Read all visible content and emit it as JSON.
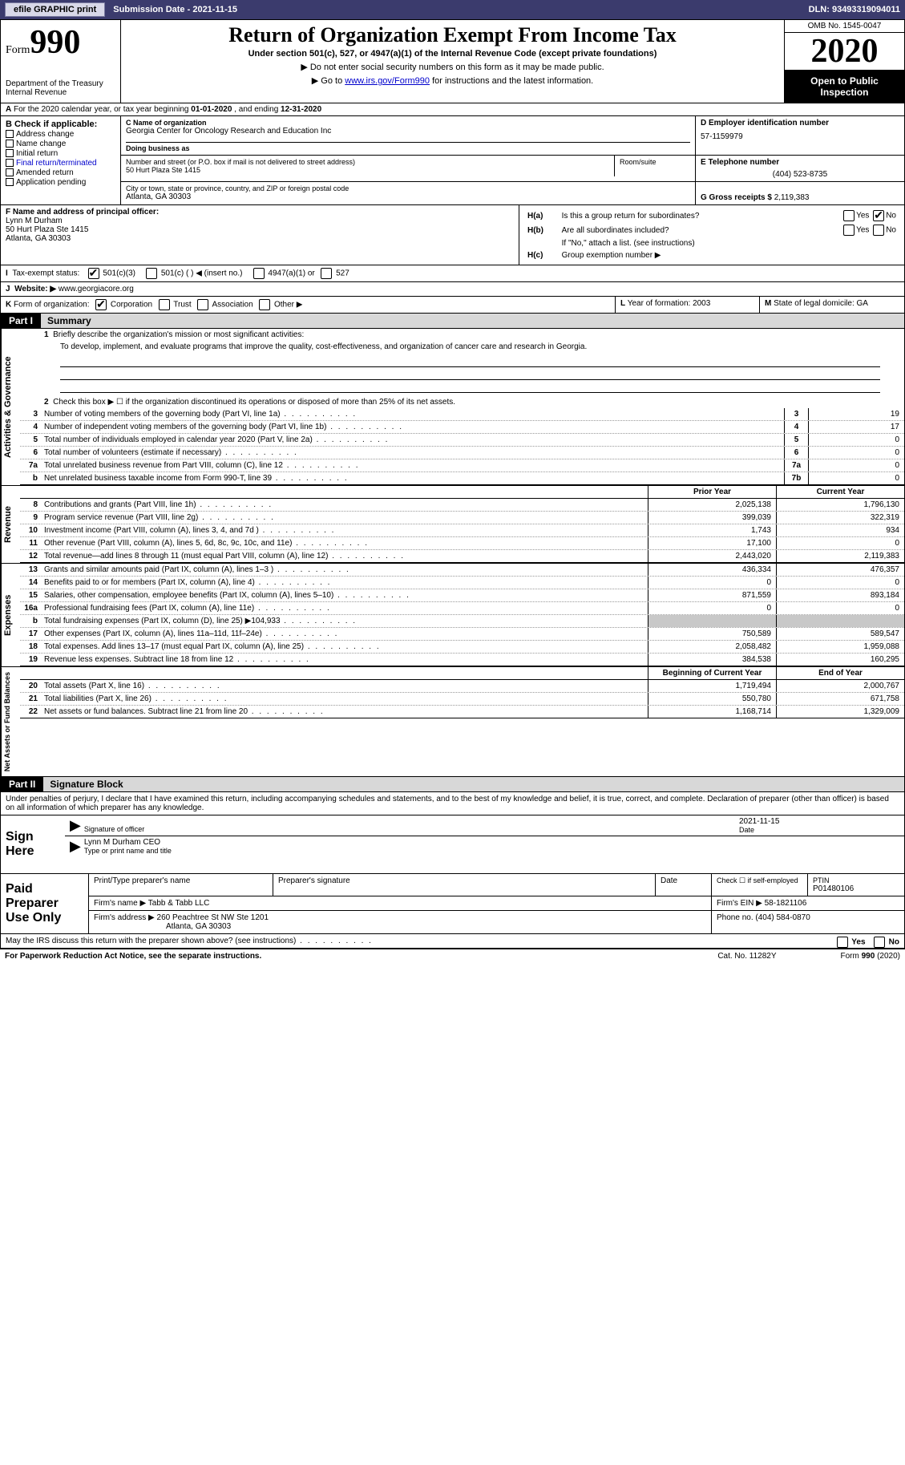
{
  "toolbar": {
    "efile_btn": "efile GRAPHIC print",
    "sub_date_label": "Submission Date - ",
    "sub_date": "2021-11-15",
    "dln_label": "DLN: ",
    "dln": "93493319094011"
  },
  "header": {
    "form_word": "Form",
    "form_num": "990",
    "dept": "Department of the Treasury\nInternal Revenue",
    "title": "Return of Organization Exempt From Income Tax",
    "sub1": "Under section 501(c), 527, or 4947(a)(1) of the Internal Revenue Code (except private foundations)",
    "sub2": "Do not enter social security numbers on this form as it may be made public.",
    "sub3_pre": "Go to ",
    "sub3_link": "www.irs.gov/Form990",
    "sub3_post": " for instructions and the latest information.",
    "omb": "OMB No. 1545-0047",
    "year": "2020",
    "inspect": "Open to Public Inspection"
  },
  "row_a": {
    "label_a": "A",
    "text": "For the 2020 calendar year, or tax year beginning ",
    "begin": "01-01-2020",
    "mid": " , and ending ",
    "end": "12-31-2020"
  },
  "col_b": {
    "lbl": "B Check if applicable:",
    "opts": [
      "Address change",
      "Name change",
      "Initial return",
      "Final return/terminated",
      "Amended return",
      "Application pending"
    ]
  },
  "col_c": {
    "name_lbl": "C Name of organization",
    "name": "Georgia Center for Oncology Research and Education Inc",
    "dba_lbl": "Doing business as",
    "dba": "",
    "street_lbl": "Number and street (or P.O. box if mail is not delivered to street address)",
    "street": "50 Hurt Plaza Ste 1415",
    "room_lbl": "Room/suite",
    "city_lbl": "City or town, state or province, country, and ZIP or foreign postal code",
    "city": "Atlanta, GA  30303"
  },
  "col_d": {
    "ein_lbl": "D Employer identification number",
    "ein": "57-1159979",
    "tel_lbl": "E Telephone number",
    "tel": "(404) 523-8735",
    "gross_lbl": "G Gross receipts $ ",
    "gross": "2,119,383"
  },
  "col_f": {
    "lbl": "F  Name and address of principal officer:",
    "name": "Lynn M Durham",
    "addr1": "50 Hurt Plaza Ste 1415",
    "addr2": "Atlanta, GA  30303"
  },
  "col_h": {
    "ha_lbl": "H(a)",
    "ha_q": "Is this a group return for subordinates?",
    "ha_yes": "Yes",
    "ha_no": "No",
    "hb_lbl": "H(b)",
    "hb_q": "Are all subordinates included?",
    "hb_note": "If \"No,\" attach a list. (see instructions)",
    "hc_lbl": "H(c)",
    "hc_q": "Group exemption number ▶"
  },
  "row_i": {
    "lbl": "I",
    "text": "Tax-exempt status:",
    "opt1": "501(c)(3)",
    "opt2": "501(c) (  ) ◀ (insert no.)",
    "opt3": "4947(a)(1) or",
    "opt4": "527"
  },
  "row_j": {
    "lbl": "J",
    "text": "Website: ▶ ",
    "url": "www.georgiacore.org"
  },
  "row_k": {
    "lbl": "K",
    "text": "Form of organization:",
    "opt1": "Corporation",
    "opt2": "Trust",
    "opt3": "Association",
    "opt4": "Other ▶"
  },
  "row_lm": {
    "l_lbl": "L",
    "l_text": "Year of formation: ",
    "l_val": "2003",
    "m_lbl": "M",
    "m_text": "State of legal domicile: ",
    "m_val": "GA"
  },
  "part1": {
    "hdr": "Part I",
    "title": "Summary",
    "q1_num": "1",
    "q1": "Briefly describe the organization's mission or most significant activities:",
    "mission": "To develop, implement, and evaluate programs that improve the quality, cost-effectiveness, and organization of cancer care and research in Georgia.",
    "q2_num": "2",
    "q2": "Check this box ▶ ☐  if the organization discontinued its operations or disposed of more than 25% of its net assets.",
    "vtab_gov": "Activities & Governance",
    "vtab_rev": "Revenue",
    "vtab_exp": "Expenses",
    "vtab_net": "Net Assets or Fund Balances",
    "lines_gov": [
      {
        "n": "3",
        "label": "Number of voting members of the governing body (Part VI, line 1a)",
        "box": "3",
        "val": "19"
      },
      {
        "n": "4",
        "label": "Number of independent voting members of the governing body (Part VI, line 1b)",
        "box": "4",
        "val": "17"
      },
      {
        "n": "5",
        "label": "Total number of individuals employed in calendar year 2020 (Part V, line 2a)",
        "box": "5",
        "val": "0"
      },
      {
        "n": "6",
        "label": "Total number of volunteers (estimate if necessary)",
        "box": "6",
        "val": "0"
      },
      {
        "n": "7a",
        "label": "Total unrelated business revenue from Part VIII, column (C), line 12",
        "box": "7a",
        "val": "0"
      },
      {
        "n": "b",
        "label": "Net unrelated business taxable income from Form 990-T, line 39",
        "box": "7b",
        "val": "0"
      }
    ],
    "col_prior": "Prior Year",
    "col_current": "Current Year",
    "lines_rev": [
      {
        "n": "8",
        "label": "Contributions and grants (Part VIII, line 1h)",
        "py": "2,025,138",
        "cy": "1,796,130"
      },
      {
        "n": "9",
        "label": "Program service revenue (Part VIII, line 2g)",
        "py": "399,039",
        "cy": "322,319"
      },
      {
        "n": "10",
        "label": "Investment income (Part VIII, column (A), lines 3, 4, and 7d )",
        "py": "1,743",
        "cy": "934"
      },
      {
        "n": "11",
        "label": "Other revenue (Part VIII, column (A), lines 5, 6d, 8c, 9c, 10c, and 11e)",
        "py": "17,100",
        "cy": "0"
      },
      {
        "n": "12",
        "label": "Total revenue—add lines 8 through 11 (must equal Part VIII, column (A), line 12)",
        "py": "2,443,020",
        "cy": "2,119,383"
      }
    ],
    "lines_exp": [
      {
        "n": "13",
        "label": "Grants and similar amounts paid (Part IX, column (A), lines 1–3 )",
        "py": "436,334",
        "cy": "476,357"
      },
      {
        "n": "14",
        "label": "Benefits paid to or for members (Part IX, column (A), line 4)",
        "py": "0",
        "cy": "0"
      },
      {
        "n": "15",
        "label": "Salaries, other compensation, employee benefits (Part IX, column (A), lines 5–10)",
        "py": "871,559",
        "cy": "893,184"
      },
      {
        "n": "16a",
        "label": "Professional fundraising fees (Part IX, column (A), line 11e)",
        "py": "0",
        "cy": "0"
      },
      {
        "n": "b",
        "label": "Total fundraising expenses (Part IX, column (D), line 25) ▶104,933",
        "py": "",
        "cy": "",
        "shade": true
      },
      {
        "n": "17",
        "label": "Other expenses (Part IX, column (A), lines 11a–11d, 11f–24e)",
        "py": "750,589",
        "cy": "589,547"
      },
      {
        "n": "18",
        "label": "Total expenses. Add lines 13–17 (must equal Part IX, column (A), line 25)",
        "py": "2,058,482",
        "cy": "1,959,088"
      },
      {
        "n": "19",
        "label": "Revenue less expenses. Subtract line 18 from line 12",
        "py": "384,538",
        "cy": "160,295"
      }
    ],
    "col_begin": "Beginning of Current Year",
    "col_end": "End of Year",
    "lines_net": [
      {
        "n": "20",
        "label": "Total assets (Part X, line 16)",
        "py": "1,719,494",
        "cy": "2,000,767"
      },
      {
        "n": "21",
        "label": "Total liabilities (Part X, line 26)",
        "py": "550,780",
        "cy": "671,758"
      },
      {
        "n": "22",
        "label": "Net assets or fund balances. Subtract line 21 from line 20",
        "py": "1,168,714",
        "cy": "1,329,009"
      }
    ]
  },
  "part2": {
    "hdr": "Part II",
    "title": "Signature Block",
    "penalty": "Under penalties of perjury, I declare that I have examined this return, including accompanying schedules and statements, and to the best of my knowledge and belief, it is true, correct, and complete. Declaration of preparer (other than officer) is based on all information of which preparer has any knowledge.",
    "sign_here": "Sign Here",
    "sig_officer_lbl": "Signature of officer",
    "sig_date_lbl": "Date",
    "sig_date": "2021-11-15",
    "officer_name": "Lynn M Durham CEO",
    "officer_name_lbl": "Type or print name and title",
    "paid_prep": "Paid Preparer Use Only",
    "prep_name_lbl": "Print/Type preparer's name",
    "prep_sig_lbl": "Preparer's signature",
    "prep_date_lbl": "Date",
    "prep_check_lbl": "Check ☐ if self-employed",
    "ptin_lbl": "PTIN",
    "ptin": "P01480106",
    "firm_name_lbl": "Firm's name   ▶",
    "firm_name": "Tabb & Tabb LLC",
    "firm_ein_lbl": "Firm's EIN ▶",
    "firm_ein": "58-1821106",
    "firm_addr_lbl": "Firm's address ▶",
    "firm_addr1": "260 Peachtree St NW Ste 1201",
    "firm_addr2": "Atlanta, GA  30303",
    "phone_lbl": "Phone no. ",
    "phone": "(404) 584-0870",
    "discuss": "May the IRS discuss this return with the preparer shown above? (see instructions)",
    "discuss_yes": "Yes",
    "discuss_no": "No"
  },
  "footer": {
    "left": "For Paperwork Reduction Act Notice, see the separate instructions.",
    "mid": "Cat. No. 11282Y",
    "right": "Form 990 (2020)"
  }
}
